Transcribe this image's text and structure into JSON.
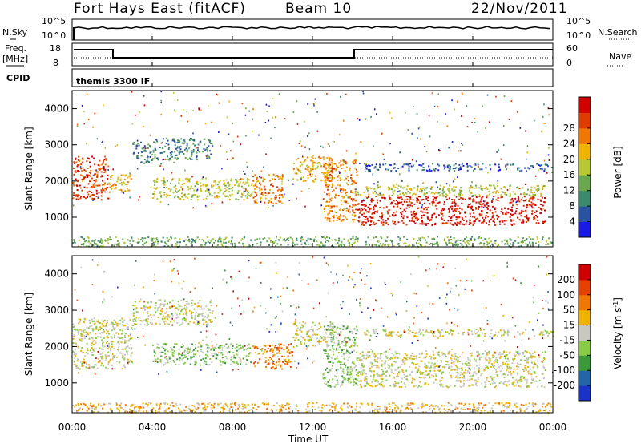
{
  "header": {
    "radar": "Fort Hays East (fitACF)",
    "beam": "Beam 10",
    "date": "22/Nov/2011"
  },
  "strips": {
    "nsky_label": "N.Sky",
    "nsky_ticks": [
      "10^5",
      "10^0"
    ],
    "nsearch_label": "N.Search",
    "nsearch_ticks": [
      "10^5",
      "10^0"
    ],
    "freq_label_1": "Freq.",
    "freq_label_2": "[MHz]",
    "freq_ticks": [
      "18",
      "8"
    ],
    "nave_label": "Nave",
    "nave_ticks": [
      "60",
      "0"
    ],
    "cpid_label": "CPID",
    "cpid_value": "themis 3300 IF"
  },
  "time_axis": {
    "labels": [
      "00:00",
      "04:00",
      "08:00",
      "12:00",
      "16:00",
      "20:00",
      "00:00"
    ],
    "title": "Time UT"
  },
  "range_axis": {
    "labels": [
      "1000",
      "2000",
      "3000",
      "4000"
    ],
    "title": "Slant Range [km]"
  },
  "power_scale": {
    "title": "Power [dB]",
    "labels": [
      "4",
      "8",
      "12",
      "16",
      "20",
      "24",
      "28"
    ],
    "colors": [
      "#1a1ae6",
      "#2952a3",
      "#3c8a6e",
      "#6aa84f",
      "#b8c832",
      "#f0b400",
      "#f07800",
      "#e03c00",
      "#d40000"
    ]
  },
  "velocity_scale": {
    "title": "Velocity [m s",
    "title_sup": "-1",
    "title_end": "]",
    "labels": [
      "200",
      "100",
      "50",
      "15",
      "-15",
      "-50",
      "-100",
      "-200"
    ],
    "colors": [
      "#1a32c8",
      "#2266a8",
      "#3a9a3a",
      "#88cc44",
      "#c8c8c0",
      "#f0b400",
      "#f07800",
      "#e84000",
      "#d00000"
    ]
  },
  "chart_data": {
    "type": "heatmap",
    "panels": [
      {
        "name": "Power",
        "units": "dB",
        "x": {
          "label": "Time UT",
          "range": [
            0,
            24
          ]
        },
        "y": {
          "label": "Slant Range [km]",
          "range": [
            180,
            4500
          ]
        },
        "scale_ticks": [
          4,
          8,
          12,
          16,
          20,
          24,
          28
        ],
        "bands": [
          {
            "t": [
              0,
              1.8
            ],
            "r": [
              1500,
              2700
            ],
            "level": 7
          },
          {
            "t": [
              1.8,
              3.0
            ],
            "r": [
              1700,
              2200
            ],
            "level": 5
          },
          {
            "t": [
              3.0,
              4.0
            ],
            "r": [
              2500,
              3100
            ],
            "level": 2
          },
          {
            "t": [
              4.0,
              7.0
            ],
            "r": [
              2600,
              3200
            ],
            "level": 2
          },
          {
            "t": [
              4.0,
              9.0
            ],
            "r": [
              1500,
              2100
            ],
            "level": 4
          },
          {
            "t": [
              9.0,
              10.5
            ],
            "r": [
              1400,
              2200
            ],
            "level": 6
          },
          {
            "t": [
              11.0,
              13.0
            ],
            "r": [
              2000,
              2700
            ],
            "level": 5
          },
          {
            "t": [
              12.5,
              14.2
            ],
            "r": [
              900,
              2600
            ],
            "level": 6
          },
          {
            "t": [
              14.2,
              23.6
            ],
            "r": [
              800,
              1600
            ],
            "level": 8
          },
          {
            "t": [
              14.2,
              23.6
            ],
            "r": [
              1600,
              1900
            ],
            "level": 4
          },
          {
            "t": [
              14.5,
              24.0
            ],
            "r": [
              2300,
              2500
            ],
            "level": 1
          },
          {
            "t": [
              0,
              24.0
            ],
            "r": [
              200,
              480
            ],
            "level": 3
          }
        ]
      },
      {
        "name": "Velocity",
        "units": "m s-1",
        "x": {
          "label": "Time UT",
          "range": [
            0,
            24
          ]
        },
        "y": {
          "label": "Slant Range [km]",
          "range": [
            180,
            4500
          ]
        },
        "scale_ticks": [
          200,
          100,
          50,
          15,
          -15,
          -50,
          -100,
          -200
        ],
        "bands": [
          {
            "t": [
              0,
              3.0
            ],
            "r": [
              1400,
              2800
            ],
            "level": 4
          },
          {
            "t": [
              3.0,
              7.0
            ],
            "r": [
              2600,
              3300
            ],
            "level": 4
          },
          {
            "t": [
              4.0,
              9.0
            ],
            "r": [
              1500,
              2100
            ],
            "level": 3
          },
          {
            "t": [
              9.0,
              11.0
            ],
            "r": [
              1400,
              2100
            ],
            "level": 6
          },
          {
            "t": [
              11.0,
              13.0
            ],
            "r": [
              2000,
              2700
            ],
            "level": 4
          },
          {
            "t": [
              12.5,
              14.2
            ],
            "r": [
              900,
              2600
            ],
            "level": 3
          },
          {
            "t": [
              14.2,
              23.6
            ],
            "r": [
              900,
              1900
            ],
            "level": 4
          },
          {
            "t": [
              14.5,
              24.0
            ],
            "r": [
              2300,
              2500
            ],
            "level": 4
          },
          {
            "t": [
              0,
              24.0
            ],
            "r": [
              200,
              480
            ],
            "level": 5
          }
        ]
      }
    ]
  }
}
